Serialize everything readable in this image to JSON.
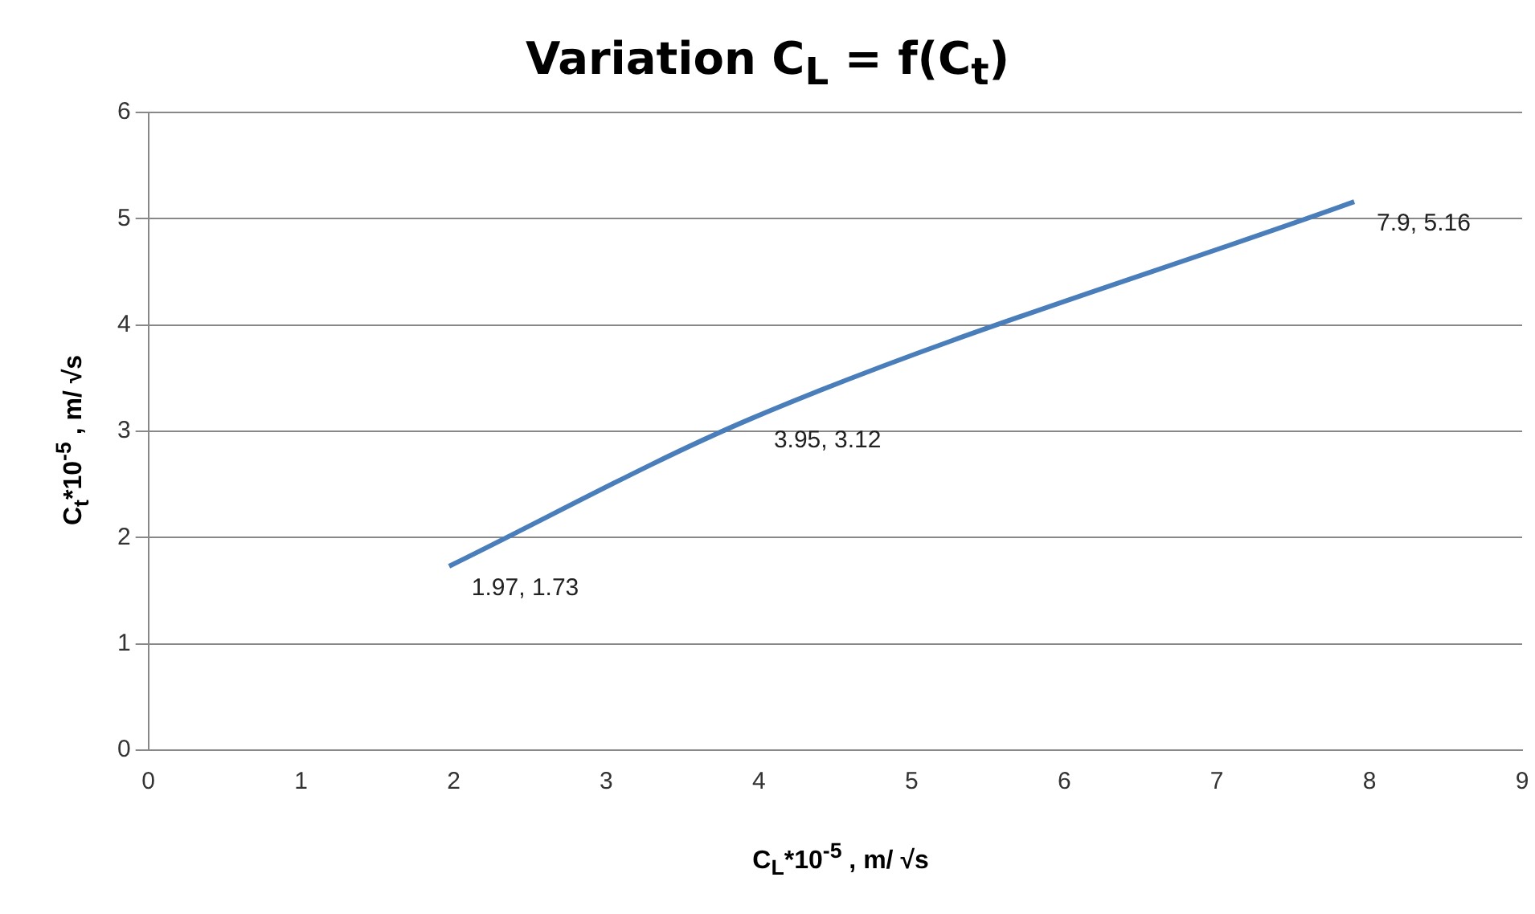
{
  "chart_data": {
    "type": "line",
    "title": "Variation C$_{L}$ = f(C$_{t}$)",
    "xlabel": "C$_{L}$*10$^{-5}$ , m/ √s",
    "ylabel": "C$_{t}$*10$^{-5}$ , m/ √s",
    "x": [
      1.97,
      3.95,
      7.9
    ],
    "values": [
      1.73,
      3.12,
      5.16
    ],
    "value_labels": [
      "1.97, 1.73",
      "3.95, 3.12",
      "7.9, 5.16"
    ],
    "color": "#4a7ebb",
    "marker": "none",
    "grid": "y",
    "xlim": [
      0,
      9
    ],
    "xticks": [
      0,
      1,
      2,
      3,
      4,
      5,
      6,
      7,
      8,
      9
    ],
    "ylim": [
      0,
      6
    ],
    "yticks": [
      0,
      1,
      2,
      3,
      4,
      5,
      6
    ]
  }
}
